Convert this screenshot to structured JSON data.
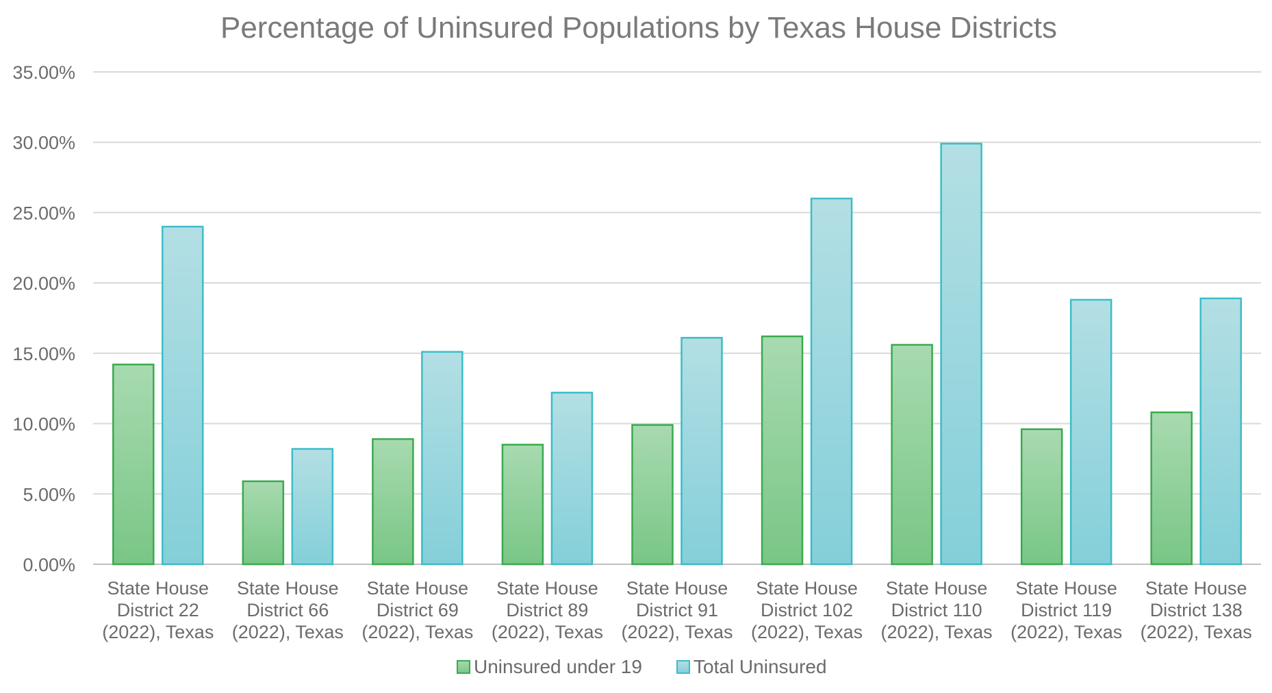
{
  "chart_data": {
    "type": "bar",
    "title": "Percentage of Uninsured Populations by Texas House Districts",
    "xlabel": "",
    "ylabel": "",
    "ylim": [
      0,
      35
    ],
    "yticks": [
      "0.00%",
      "5.00%",
      "10.00%",
      "15.00%",
      "20.00%",
      "25.00%",
      "30.00%",
      "35.00%"
    ],
    "grid": true,
    "legend_position": "bottom",
    "categories": [
      [
        "State House",
        "District 22",
        "(2022), Texas"
      ],
      [
        "State House",
        "District 66",
        "(2022), Texas"
      ],
      [
        "State House",
        "District 69",
        "(2022), Texas"
      ],
      [
        "State House",
        "District 89",
        "(2022), Texas"
      ],
      [
        "State House",
        "District 91",
        "(2022), Texas"
      ],
      [
        "State House",
        "District 102",
        "(2022), Texas"
      ],
      [
        "State House",
        "District 110",
        "(2022), Texas"
      ],
      [
        "State House",
        "District 119",
        "(2022), Texas"
      ],
      [
        "State House",
        "District 138",
        "(2022), Texas"
      ]
    ],
    "series": [
      {
        "name": "Uninsured under 19",
        "color": "#7ec98a",
        "stroke": "#3aaa4e",
        "values": [
          14.2,
          5.9,
          8.9,
          8.5,
          9.9,
          16.2,
          15.6,
          9.6,
          10.8
        ]
      },
      {
        "name": "Total Uninsured",
        "color": "#93d3dc",
        "stroke": "#3bbdc6",
        "values": [
          24.0,
          8.2,
          15.1,
          12.2,
          16.1,
          26.0,
          29.9,
          18.8,
          18.9
        ]
      }
    ]
  }
}
